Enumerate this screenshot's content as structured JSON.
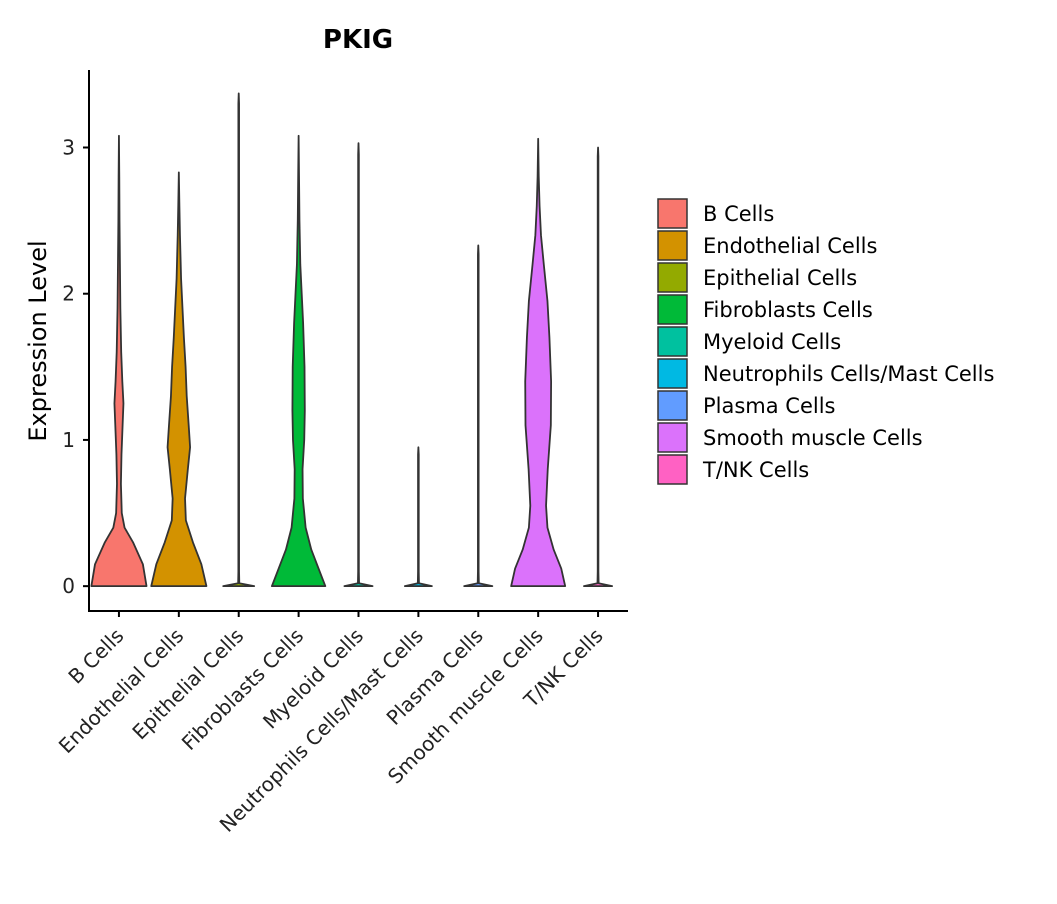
{
  "chart_data": {
    "type": "violin",
    "title": "PKIG",
    "xlabel": "",
    "ylabel": "Expression Level",
    "ylim": [
      -0.17,
      3.53
    ],
    "yticks": [
      0,
      1,
      2,
      3
    ],
    "grid": false,
    "legend_position": "right",
    "categories": [
      "B Cells",
      "Endothelial Cells",
      "Epithelial Cells",
      "Fibroblasts Cells",
      "Myeloid Cells",
      "Neutrophils Cells/Mast Cells",
      "Plasma Cells",
      "Smooth muscle Cells",
      "T/NK Cells"
    ],
    "series": [
      {
        "name": "B Cells",
        "color": "#F8766D",
        "max": 3.08,
        "profile": [
          [
            0,
            0.98
          ],
          [
            0.15,
            0.85
          ],
          [
            0.3,
            0.5
          ],
          [
            0.4,
            0.2
          ],
          [
            0.5,
            0.1
          ],
          [
            0.7,
            0.07
          ],
          [
            0.9,
            0.09
          ],
          [
            1.1,
            0.13
          ],
          [
            1.25,
            0.16
          ],
          [
            1.4,
            0.12
          ],
          [
            1.6,
            0.08
          ],
          [
            1.9,
            0.05
          ],
          [
            2.2,
            0.035
          ],
          [
            2.5,
            0.02
          ],
          [
            2.8,
            0.012
          ],
          [
            3.08,
            0
          ]
        ]
      },
      {
        "name": "Endothelial Cells",
        "color": "#D39200",
        "max": 2.83,
        "profile": [
          [
            0,
            0.98
          ],
          [
            0.15,
            0.8
          ],
          [
            0.3,
            0.5
          ],
          [
            0.45,
            0.25
          ],
          [
            0.6,
            0.22
          ],
          [
            0.8,
            0.32
          ],
          [
            0.95,
            0.4
          ],
          [
            1.1,
            0.35
          ],
          [
            1.3,
            0.28
          ],
          [
            1.5,
            0.24
          ],
          [
            1.7,
            0.18
          ],
          [
            1.9,
            0.13
          ],
          [
            2.1,
            0.08
          ],
          [
            2.4,
            0.04
          ],
          [
            2.6,
            0.02
          ],
          [
            2.83,
            0
          ]
        ]
      },
      {
        "name": "Epithelial Cells",
        "color": "#93AA00",
        "max": 3.37,
        "profile": [
          [
            0,
            0.55
          ],
          [
            0.02,
            0.02
          ],
          [
            0.1,
            0.012
          ],
          [
            3.3,
            0.012
          ],
          [
            3.37,
            0
          ]
        ]
      },
      {
        "name": "Fibroblasts Cells",
        "color": "#00BA38",
        "max": 3.08,
        "profile": [
          [
            0,
            0.95
          ],
          [
            0.1,
            0.75
          ],
          [
            0.25,
            0.45
          ],
          [
            0.4,
            0.25
          ],
          [
            0.6,
            0.15
          ],
          [
            0.8,
            0.14
          ],
          [
            1.0,
            0.2
          ],
          [
            1.2,
            0.22
          ],
          [
            1.5,
            0.21
          ],
          [
            1.8,
            0.16
          ],
          [
            2.0,
            0.11
          ],
          [
            2.2,
            0.06
          ],
          [
            2.5,
            0.03
          ],
          [
            2.8,
            0.015
          ],
          [
            3.08,
            0
          ]
        ]
      },
      {
        "name": "Myeloid Cells",
        "color": "#00C19F",
        "max": 3.03,
        "profile": [
          [
            0,
            0.5
          ],
          [
            0.02,
            0.02
          ],
          [
            0.1,
            0.012
          ],
          [
            2.95,
            0.012
          ],
          [
            3.03,
            0
          ]
        ]
      },
      {
        "name": "Neutrophils Cells/Mast Cells",
        "color": "#00B9E3",
        "max": 0.95,
        "profile": [
          [
            0,
            0.48
          ],
          [
            0.02,
            0.02
          ],
          [
            0.1,
            0.012
          ],
          [
            0.9,
            0.012
          ],
          [
            0.95,
            0
          ]
        ]
      },
      {
        "name": "Plasma Cells",
        "color": "#619CFF",
        "max": 2.33,
        "profile": [
          [
            0,
            0.5
          ],
          [
            0.02,
            0.02
          ],
          [
            0.1,
            0.012
          ],
          [
            2.27,
            0.012
          ],
          [
            2.33,
            0
          ]
        ]
      },
      {
        "name": "Smooth muscle Cells",
        "color": "#DB72FB",
        "max": 3.06,
        "profile": [
          [
            0,
            0.96
          ],
          [
            0.12,
            0.82
          ],
          [
            0.25,
            0.55
          ],
          [
            0.4,
            0.33
          ],
          [
            0.55,
            0.28
          ],
          [
            0.8,
            0.34
          ],
          [
            1.1,
            0.45
          ],
          [
            1.4,
            0.46
          ],
          [
            1.7,
            0.4
          ],
          [
            1.95,
            0.33
          ],
          [
            2.2,
            0.2
          ],
          [
            2.4,
            0.1
          ],
          [
            2.6,
            0.05
          ],
          [
            2.8,
            0.02
          ],
          [
            3.06,
            0
          ]
        ]
      },
      {
        "name": "T/NK Cells",
        "color": "#FF61C3",
        "max": 3.0,
        "profile": [
          [
            0,
            0.5
          ],
          [
            0.02,
            0.02
          ],
          [
            0.1,
            0.012
          ],
          [
            2.94,
            0.012
          ],
          [
            3.0,
            0
          ]
        ]
      }
    ]
  }
}
